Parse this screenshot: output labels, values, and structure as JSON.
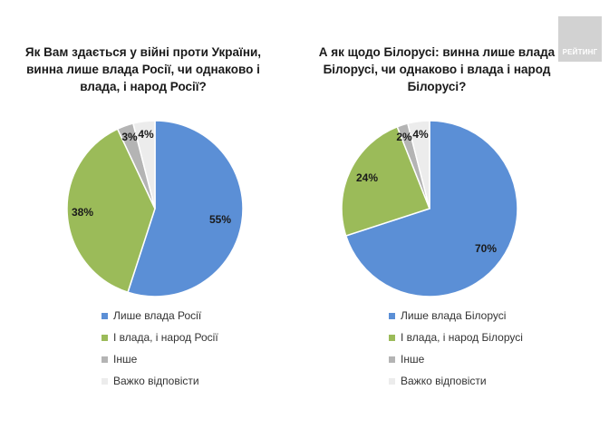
{
  "logo": {
    "text": "РЕЙТИНГ"
  },
  "legend_items": [
    {
      "label": "Лише влада Росії",
      "color": "#5b8fd6"
    },
    {
      "label": "І влада, і народ Росії",
      "color": "#9bbb59"
    },
    {
      "label": "Інше",
      "color": "#b4b4b4"
    },
    {
      "label": "Важко відповісти",
      "color": "#ececec"
    }
  ],
  "chart_data": [
    {
      "type": "pie",
      "title": "Як Вам здається у війні проти України, винна лише влада Росії, чи однаково і влада, і народ Росії?",
      "categories": [
        "Лише влада Росії",
        "І влада, і народ Росії",
        "Інше",
        "Важко відповісти"
      ],
      "values": [
        55,
        38,
        3,
        4
      ],
      "value_labels": [
        "55%",
        "38%",
        "3%",
        "4%"
      ],
      "colors": [
        "#5b8fd6",
        "#9bbb59",
        "#b4b4b4",
        "#ececec"
      ],
      "legend_position": "bottom"
    },
    {
      "type": "pie",
      "title": "А як щодо Білорусі: винна лише влада Білорусі, чи однаково і влада і народ Білорусі?",
      "categories": [
        "Лише влада Білорусі",
        "І влада, і народ Білорусі",
        "Інше",
        "Важко відповісти"
      ],
      "values": [
        70,
        24,
        2,
        4
      ],
      "value_labels": [
        "70%",
        "24%",
        "2%",
        "4%"
      ],
      "colors": [
        "#5b8fd6",
        "#9bbb59",
        "#b4b4b4",
        "#ececec"
      ],
      "legend_position": "bottom"
    }
  ]
}
